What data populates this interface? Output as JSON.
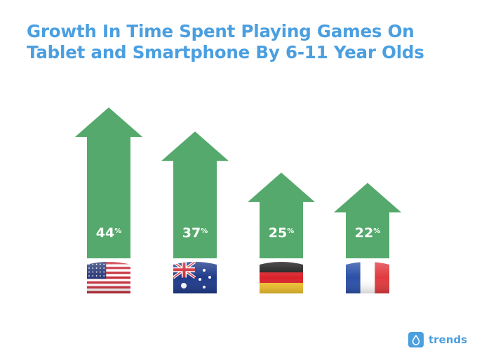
{
  "header": {
    "title_line1": "Growth In Time Spent Playing Games On",
    "title_line2": "Tablet and Smartphone By 6-11 Year Olds"
  },
  "brand": {
    "name": "trends",
    "icon": "drop-icon",
    "color": "#4a9fe0"
  },
  "colors": {
    "arrow": "#56a96c",
    "title": "#4a9fe0"
  },
  "chart_data": {
    "type": "bar",
    "categories": [
      "United States",
      "Australia",
      "Germany",
      "France"
    ],
    "category_icons": [
      "us-flag-icon",
      "australia-flag-icon",
      "germany-flag-icon",
      "france-flag-icon"
    ],
    "values": [
      44,
      37,
      25,
      22
    ],
    "value_labels": [
      "44",
      "37",
      "25",
      "22"
    ],
    "unit": "%",
    "title": "Growth In Time Spent Playing Games On Tablet and Smartphone By 6-11 Year Olds",
    "ylim": [
      0,
      44
    ]
  }
}
